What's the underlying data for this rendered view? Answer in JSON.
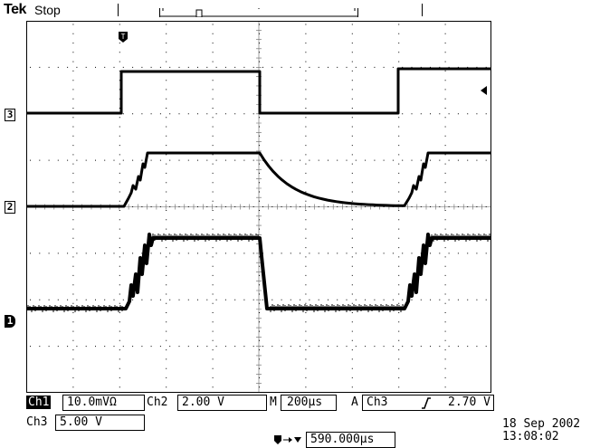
{
  "header": {
    "brand": "Tek",
    "acquisition_state": "Stop"
  },
  "markers": {
    "trigger_position": "T",
    "channel_3": "3",
    "channel_2": "2",
    "channel_1": "1"
  },
  "readouts": {
    "ch1_label": "Ch1",
    "ch1_scale": "10.0mVΩ",
    "ch2_label": "Ch2",
    "ch2_scale": "2.00 V",
    "ch3_label": "Ch3",
    "ch3_scale": "5.00 V",
    "timebase_label": "M",
    "timebase_value": "200µs",
    "trigger_mode": "A",
    "trigger_source": "Ch3",
    "trigger_slope_icon": "rising-edge-icon",
    "trigger_level": "2.70 V",
    "horizontal_position": "590.000µs",
    "date": "18 Sep  2002",
    "time": "13:08:02"
  },
  "colors": {
    "trace": "#000000",
    "background": "#ffffff"
  }
}
